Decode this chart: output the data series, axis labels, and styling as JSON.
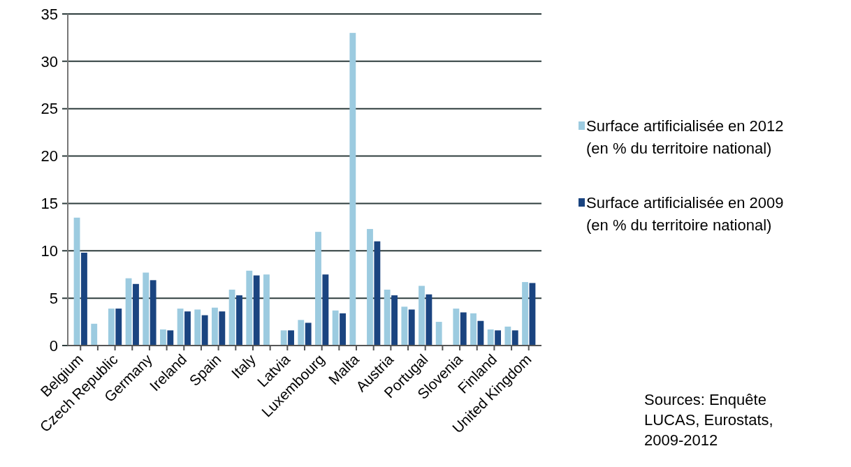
{
  "chart_data": {
    "type": "bar",
    "categories": [
      "Belgium",
      null,
      "Czech Republic",
      null,
      "Germany",
      null,
      "Ireland",
      null,
      "Spain",
      null,
      "Italy",
      null,
      "Latvia",
      null,
      "Luxembourg",
      null,
      "Malta",
      null,
      "Austria",
      null,
      "Portugal",
      null,
      "Slovenia",
      null,
      "Finland",
      null,
      "United Kingdom"
    ],
    "series": [
      {
        "name": "Surface artificialisée en 2012 (en % du territoire national)",
        "color": "#9ccbe0",
        "values": [
          13.5,
          2.3,
          3.9,
          7.1,
          7.7,
          1.7,
          3.9,
          3.8,
          4.0,
          5.9,
          7.9,
          7.5,
          1.6,
          2.7,
          12.0,
          3.7,
          33.0,
          12.3,
          5.9,
          4.1,
          6.3,
          2.5,
          3.9,
          3.4,
          1.7,
          2.0,
          6.7
        ]
      },
      {
        "name": "Surface artificialisée en 2009 (en % du territoire national)",
        "color": "#1a4480",
        "values": [
          9.8,
          null,
          3.9,
          6.5,
          6.9,
          1.6,
          3.6,
          3.2,
          3.6,
          5.3,
          7.4,
          null,
          1.6,
          2.4,
          7.5,
          3.4,
          null,
          11.0,
          5.3,
          3.8,
          5.4,
          null,
          3.5,
          2.6,
          1.6,
          1.6,
          6.6
        ]
      }
    ],
    "ylim": [
      0,
      35
    ],
    "yticks": [
      0,
      5,
      10,
      15,
      20,
      25,
      30,
      35
    ],
    "grid": "y",
    "legend": "right",
    "annotations": [
      "Sources: Enquête LUCAS, Eurostats, 2009-2012"
    ]
  }
}
